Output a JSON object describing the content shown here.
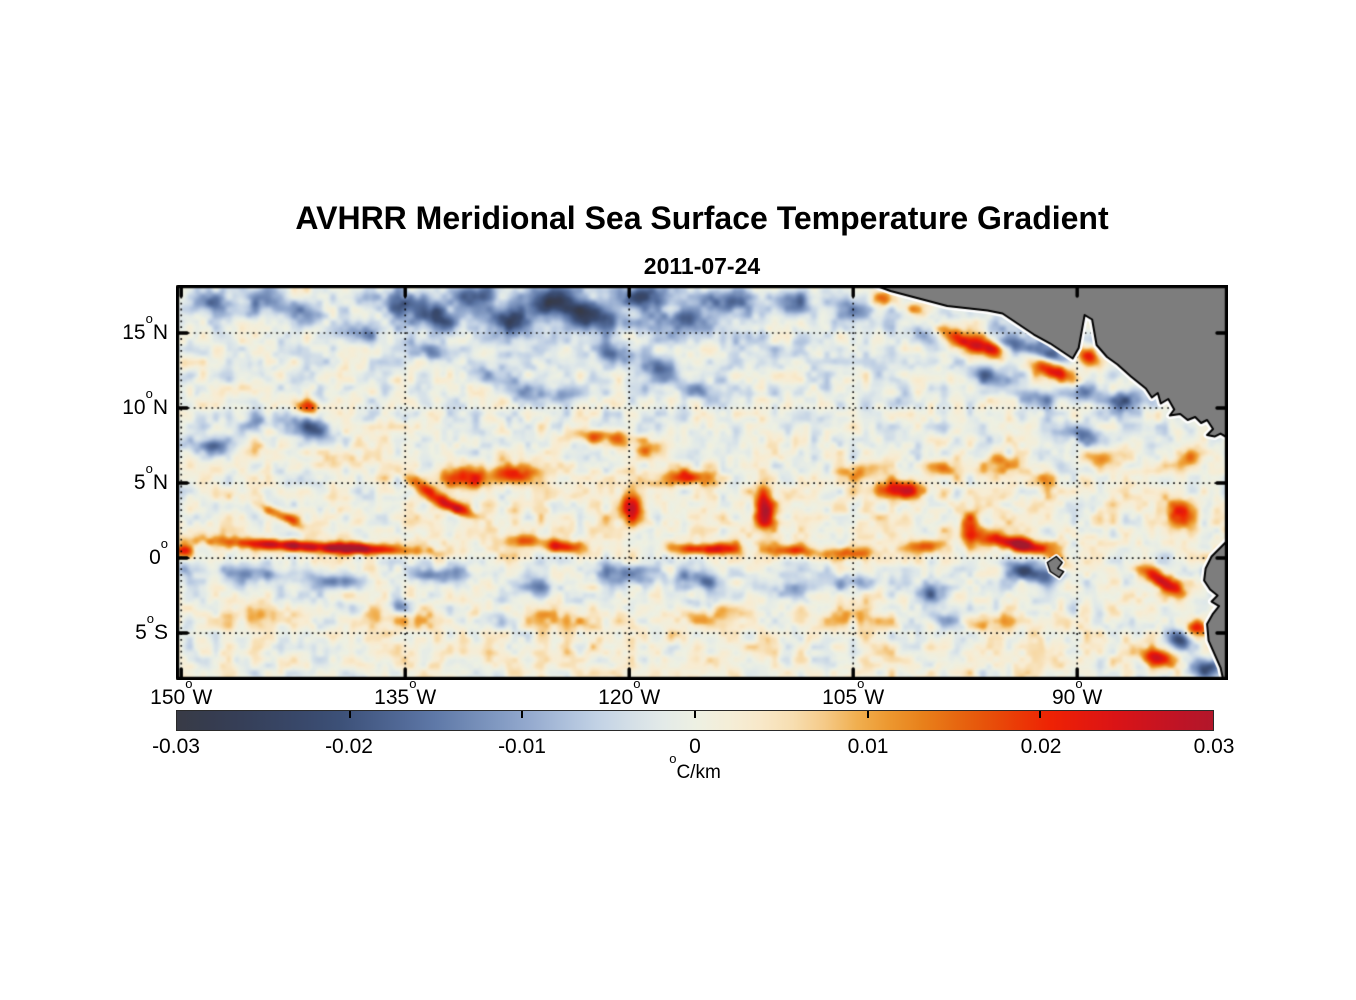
{
  "title": "AVHRR Meridional Sea Surface Temperature Gradient",
  "date": "2011-07-24",
  "chart_data": {
    "type": "heatmap",
    "title": "AVHRR Meridional Sea Surface Temperature Gradient",
    "subtitle": "2011-07-24",
    "variable": "meridional sea surface temperature gradient",
    "units": "°C/km",
    "lon_range": [
      -150.35,
      -79.9
    ],
    "lat_range": [
      -8.13,
      18.2
    ],
    "grid": "dotted",
    "x_ticks": [
      {
        "lon": -150,
        "num": "150",
        "dir": "W",
        "label": "150°W"
      },
      {
        "lon": -135,
        "num": "135",
        "dir": "W",
        "label": "135°W"
      },
      {
        "lon": -120,
        "num": "120",
        "dir": "W",
        "label": "120°W"
      },
      {
        "lon": -105,
        "num": "105",
        "dir": "W",
        "label": "105°W"
      },
      {
        "lon": -90,
        "num": "90",
        "dir": "W",
        "label": "90°W"
      }
    ],
    "y_ticks": [
      {
        "lat": 15,
        "num": "15",
        "dir": "N",
        "label": "15°N"
      },
      {
        "lat": 10,
        "num": "10",
        "dir": "N",
        "label": "10°N"
      },
      {
        "lat": 5,
        "num": "5",
        "dir": "N",
        "label": "5°N"
      },
      {
        "lat": 0,
        "num": "0",
        "dir": "",
        "label": "0°"
      },
      {
        "lat": -5,
        "num": "5",
        "dir": "S",
        "label": "5°S"
      }
    ],
    "colorbar": {
      "min": -0.03,
      "max": 0.03,
      "ticks": [
        -0.03,
        -0.02,
        -0.01,
        0,
        0.01,
        0.02,
        0.03
      ],
      "tick_labels": [
        "-0.03",
        "-0.02",
        "-0.01",
        "0",
        "0.01",
        "0.02",
        "0.03"
      ],
      "unit_sup": "o",
      "unit_text": "C/km",
      "stops": [
        {
          "v": -0.0325,
          "c": "#3a393b"
        },
        {
          "v": -0.027,
          "c": "#353d54"
        },
        {
          "v": -0.021,
          "c": "#3a4d74"
        },
        {
          "v": -0.0155,
          "c": "#5a74a4"
        },
        {
          "v": -0.01,
          "c": "#8fa6cc"
        },
        {
          "v": -0.006,
          "c": "#bfcfe4"
        },
        {
          "v": -0.0025,
          "c": "#dfe8e9"
        },
        {
          "v": 0.0,
          "c": "#edf0e3"
        },
        {
          "v": 0.003,
          "c": "#f8ecd2"
        },
        {
          "v": 0.0065,
          "c": "#f7d9a6"
        },
        {
          "v": 0.01,
          "c": "#efa63d"
        },
        {
          "v": 0.0135,
          "c": "#e77c17"
        },
        {
          "v": 0.017,
          "c": "#e7500a"
        },
        {
          "v": 0.0205,
          "c": "#ef2203"
        },
        {
          "v": 0.024,
          "c": "#dd1414"
        },
        {
          "v": 0.028,
          "c": "#bf1426"
        },
        {
          "v": 0.0325,
          "c": "#a11a2e"
        }
      ]
    },
    "land_color": "#7d7d7d",
    "coast_outline": "#000000",
    "coast_halo": "#ffffff",
    "grid_color": "#000000",
    "land_polygons": {
      "central_america": [
        [
          -103.6,
          18.2
        ],
        [
          -102.5,
          17.8
        ],
        [
          -100.6,
          17.3
        ],
        [
          -98.7,
          16.8
        ],
        [
          -96.0,
          16.5
        ],
        [
          -95.0,
          16.3
        ],
        [
          -94.1,
          15.7
        ],
        [
          -92.9,
          14.9
        ],
        [
          -91.8,
          14.3
        ],
        [
          -90.9,
          13.7
        ],
        [
          -90.3,
          13.3
        ],
        [
          -89.9,
          14.0
        ],
        [
          -89.5,
          16.2
        ],
        [
          -89.0,
          15.9
        ],
        [
          -88.7,
          14.2
        ],
        [
          -88.0,
          13.4
        ],
        [
          -87.3,
          12.9
        ],
        [
          -86.4,
          12.1
        ],
        [
          -85.4,
          11.3
        ],
        [
          -85.0,
          10.7
        ],
        [
          -84.6,
          11.0
        ],
        [
          -84.4,
          10.3
        ],
        [
          -83.9,
          10.6
        ],
        [
          -83.5,
          9.9
        ],
        [
          -83.8,
          9.5
        ],
        [
          -83.1,
          9.6
        ],
        [
          -82.6,
          9.2
        ],
        [
          -82.1,
          9.4
        ],
        [
          -81.7,
          9.0
        ],
        [
          -81.3,
          9.2
        ],
        [
          -80.9,
          8.6
        ],
        [
          -81.3,
          8.2
        ],
        [
          -80.8,
          8.1
        ],
        [
          -80.4,
          8.3
        ],
        [
          -79.9,
          8.0
        ],
        [
          -79.9,
          18.2
        ]
      ],
      "south_america": [
        [
          -79.9,
          1.2
        ],
        [
          -80.4,
          0.7
        ],
        [
          -81.0,
          0.1
        ],
        [
          -81.4,
          -0.7
        ],
        [
          -81.5,
          -1.5
        ],
        [
          -81.1,
          -2.1
        ],
        [
          -80.6,
          -2.5
        ],
        [
          -81.0,
          -2.9
        ],
        [
          -80.5,
          -3.2
        ],
        [
          -80.9,
          -3.7
        ],
        [
          -81.3,
          -4.4
        ],
        [
          -81.2,
          -5.5
        ],
        [
          -80.8,
          -6.4
        ],
        [
          -80.4,
          -7.3
        ],
        [
          -80.2,
          -8.2
        ],
        [
          -79.9,
          -8.2
        ]
      ],
      "galapagos": [
        [
          -92.0,
          -0.3
        ],
        [
          -91.4,
          0.1
        ],
        [
          -91.0,
          -0.3
        ],
        [
          -91.3,
          -0.7
        ],
        [
          -90.9,
          -0.9
        ],
        [
          -91.2,
          -1.3
        ],
        [
          -91.8,
          -0.9
        ]
      ]
    },
    "features_format": "[lon_deg, lat_deg, amplitude_degC_per_km, sigma_lon_deg, sigma_lat_deg, rotation_deg_cw]",
    "features": [
      [
        -115,
        14.5,
        -0.0022,
        26,
        3.2,
        0
      ],
      [
        -115,
        3.0,
        0.0028,
        26,
        2.2,
        0
      ],
      [
        -115,
        -1.3,
        -0.0018,
        26,
        1.1,
        0
      ],
      [
        -115,
        -5.8,
        0.0022,
        26,
        2.4,
        0
      ],
      [
        -148.0,
        16.9,
        -0.013,
        1.1,
        0.55,
        0
      ],
      [
        -144.4,
        17.2,
        -0.015,
        1.0,
        0.6,
        0
      ],
      [
        -141.7,
        16.4,
        -0.013,
        0.9,
        0.5,
        20
      ],
      [
        -138.3,
        15.0,
        -0.015,
        1.1,
        0.5,
        10
      ],
      [
        -135.5,
        17.1,
        -0.017,
        1.0,
        0.6,
        0
      ],
      [
        -133.2,
        16.1,
        -0.021,
        1.2,
        0.6,
        15
      ],
      [
        -130.6,
        17.5,
        -0.019,
        1.0,
        0.6,
        0
      ],
      [
        -128.2,
        15.8,
        -0.021,
        1.1,
        0.6,
        10
      ],
      [
        -125.4,
        17.1,
        -0.023,
        1.3,
        0.7,
        0
      ],
      [
        -122.5,
        16.1,
        -0.023,
        1.5,
        0.7,
        10
      ],
      [
        -119.3,
        17.5,
        -0.019,
        1.2,
        0.6,
        0
      ],
      [
        -116.5,
        15.8,
        -0.017,
        1.1,
        0.55,
        0
      ],
      [
        -113.3,
        17.1,
        -0.019,
        1.1,
        0.6,
        0
      ],
      [
        -109.2,
        17.1,
        -0.015,
        1.0,
        0.55,
        0
      ],
      [
        -105.2,
        16.5,
        -0.013,
        0.9,
        0.5,
        0
      ],
      [
        -133.2,
        13.7,
        -0.013,
        0.8,
        0.45,
        25
      ],
      [
        -130.2,
        12.5,
        -0.011,
        0.8,
        0.45,
        25
      ],
      [
        -127.3,
        11.1,
        -0.012,
        0.9,
        0.45,
        20
      ],
      [
        -124.5,
        10.8,
        -0.011,
        0.9,
        0.45,
        0
      ],
      [
        -121.1,
        13.7,
        -0.015,
        1.0,
        0.5,
        15
      ],
      [
        -117.9,
        12.4,
        -0.013,
        0.9,
        0.5,
        20
      ],
      [
        -115.0,
        11.1,
        -0.009,
        0.8,
        0.45,
        0
      ],
      [
        -148.0,
        7.4,
        -0.017,
        0.9,
        0.5,
        0
      ],
      [
        -141.3,
        8.7,
        -0.019,
        1.0,
        0.5,
        15
      ],
      [
        -144.8,
        9.1,
        -0.01,
        0.7,
        0.4,
        0
      ],
      [
        -99.9,
        15.1,
        -0.012,
        0.8,
        0.5,
        0
      ],
      [
        -94.4,
        14.1,
        -0.018,
        1.0,
        0.55,
        20
      ],
      [
        -91.8,
        13.6,
        -0.02,
        0.9,
        0.5,
        20
      ],
      [
        -89.8,
        11.1,
        -0.016,
        0.8,
        0.5,
        0
      ],
      [
        -95.7,
        12.1,
        -0.017,
        0.9,
        0.45,
        20
      ],
      [
        -92.6,
        10.7,
        -0.013,
        0.8,
        0.45,
        0
      ],
      [
        -89.4,
        8.1,
        -0.015,
        0.9,
        0.5,
        20
      ],
      [
        -86.9,
        10.5,
        -0.016,
        0.7,
        0.5,
        0
      ],
      [
        -149.8,
        -0.8,
        -0.011,
        0.5,
        0.35,
        0
      ],
      [
        -145.2,
        -1.0,
        -0.013,
        1.3,
        0.4,
        5
      ],
      [
        -139.7,
        -1.5,
        -0.012,
        1.4,
        0.4,
        0
      ],
      [
        -132.6,
        -1.1,
        -0.013,
        1.3,
        0.4,
        0
      ],
      [
        -126.0,
        -1.9,
        -0.009,
        1.2,
        0.4,
        0
      ],
      [
        -120.1,
        -1.0,
        -0.016,
        1.3,
        0.45,
        5
      ],
      [
        -115.2,
        -1.5,
        -0.014,
        1.2,
        0.45,
        10
      ],
      [
        -109.2,
        -2.0,
        -0.008,
        1.2,
        0.4,
        0
      ],
      [
        -104.9,
        -1.6,
        -0.01,
        1.0,
        0.4,
        0
      ],
      [
        -99.9,
        -2.4,
        -0.013,
        0.9,
        0.45,
        15
      ],
      [
        -93.1,
        -1.0,
        -0.021,
        1.1,
        0.45,
        15
      ],
      [
        -139.2,
        -3.2,
        -0.009,
        0.7,
        0.35,
        15
      ],
      [
        -135.2,
        -3.3,
        -0.011,
        0.8,
        0.35,
        10
      ],
      [
        -128.6,
        -4.2,
        -0.009,
        0.9,
        0.4,
        10
      ],
      [
        -98.9,
        -4.1,
        -0.012,
        0.8,
        0.4,
        10
      ],
      [
        -115.3,
        -3.0,
        -0.007,
        0.6,
        0.35,
        0
      ],
      [
        -83.1,
        -5.5,
        -0.019,
        0.8,
        0.45,
        25
      ],
      [
        -81.4,
        -7.4,
        -0.022,
        0.9,
        0.5,
        15
      ],
      [
        -149.8,
        0.5,
        0.02,
        0.45,
        0.3,
        0
      ],
      [
        -141.2,
        0.75,
        0.027,
        5.0,
        0.26,
        3
      ],
      [
        -138.0,
        0.67,
        0.012,
        1.2,
        0.25,
        0
      ],
      [
        -143.3,
        2.8,
        0.016,
        1.4,
        0.28,
        25
      ],
      [
        -133.4,
        4.5,
        0.015,
        1.3,
        0.3,
        30
      ],
      [
        -131.8,
        3.4,
        0.021,
        1.1,
        0.28,
        20
      ],
      [
        -124.3,
        0.73,
        0.024,
        0.9,
        0.3,
        5
      ],
      [
        -126.9,
        1.2,
        0.012,
        1.0,
        0.3,
        0
      ],
      [
        -131.2,
        5.3,
        0.02,
        1.3,
        0.5,
        0
      ],
      [
        -127.8,
        5.65,
        0.018,
        1.1,
        0.45,
        0
      ],
      [
        -121.9,
        8.1,
        0.016,
        1.6,
        0.35,
        5
      ],
      [
        -118.7,
        7.2,
        0.01,
        1.0,
        0.35,
        10
      ],
      [
        -119.8,
        3.3,
        0.024,
        0.5,
        0.9,
        0
      ],
      [
        -116.0,
        5.4,
        0.018,
        1.1,
        0.35,
        0
      ],
      [
        -110.9,
        3.3,
        0.026,
        0.45,
        1.1,
        0
      ],
      [
        -114.8,
        0.6,
        0.024,
        1.6,
        0.3,
        0
      ],
      [
        -101.9,
        4.6,
        0.02,
        1.2,
        0.4,
        0
      ],
      [
        -101.4,
        4.3,
        0.012,
        0.5,
        0.35,
        0
      ],
      [
        -97.1,
        2.1,
        0.016,
        0.5,
        0.8,
        0
      ],
      [
        -109.0,
        0.47,
        0.02,
        1.1,
        0.3,
        0
      ],
      [
        -105.2,
        0.27,
        0.016,
        1.2,
        0.3,
        0
      ],
      [
        -100.4,
        0.73,
        0.014,
        0.9,
        0.3,
        0
      ],
      [
        -94.0,
        0.93,
        0.033,
        1.5,
        0.33,
        10
      ],
      [
        -91.3,
        -0.2,
        0.018,
        0.6,
        0.3,
        20
      ],
      [
        -104.5,
        5.7,
        0.012,
        0.8,
        0.4,
        0
      ],
      [
        -95.0,
        6.2,
        0.015,
        0.9,
        0.45,
        0
      ],
      [
        -99.0,
        5.9,
        0.009,
        0.7,
        0.4,
        0
      ],
      [
        -92.5,
        5.3,
        0.011,
        0.8,
        0.4,
        0
      ],
      [
        -88.2,
        6.7,
        0.013,
        0.9,
        0.45,
        0
      ],
      [
        -82.5,
        6.6,
        0.015,
        0.6,
        0.5,
        0
      ],
      [
        -83.1,
        3.0,
        0.016,
        0.8,
        0.7,
        0
      ],
      [
        -96.4,
        14.1,
        0.031,
        1.4,
        0.45,
        15
      ],
      [
        -99.2,
        15.2,
        0.014,
        0.9,
        0.4,
        10
      ],
      [
        -91.6,
        12.5,
        0.031,
        1.2,
        0.45,
        25
      ],
      [
        -89.2,
        13.4,
        0.02,
        0.5,
        0.4,
        20
      ],
      [
        -102.9,
        17.3,
        0.013,
        0.7,
        0.35,
        0
      ],
      [
        -100.9,
        16.6,
        0.014,
        0.7,
        0.35,
        10
      ],
      [
        -84.3,
        -1.53,
        0.029,
        1.1,
        0.38,
        30
      ],
      [
        -82.0,
        -4.6,
        0.021,
        0.5,
        0.4,
        0
      ],
      [
        -84.5,
        -6.7,
        0.026,
        0.9,
        0.4,
        10
      ],
      [
        -80.4,
        -0.27,
        0.015,
        0.4,
        0.4,
        0
      ],
      [
        -141.5,
        10.1,
        0.022,
        0.5,
        0.35,
        0
      ],
      [
        -145.4,
        -3.9,
        0.0075,
        1.8,
        0.5,
        0
      ],
      [
        -135.3,
        -3.9,
        0.0075,
        1.8,
        0.5,
        0
      ],
      [
        -125.3,
        -4.1,
        0.007,
        1.8,
        0.5,
        0
      ],
      [
        -115.2,
        -3.9,
        0.007,
        1.8,
        0.5,
        0
      ],
      [
        -105.1,
        -4.0,
        0.0075,
        1.8,
        0.5,
        0
      ],
      [
        -95.1,
        -4.2,
        0.007,
        1.5,
        0.5,
        0
      ],
      [
        -145.3,
        7.1,
        0.007,
        1.2,
        0.5,
        0
      ],
      [
        -138.5,
        6.7,
        0.007,
        1.2,
        0.5,
        0
      ]
    ],
    "noise": {
      "seed": 7,
      "octave1": {
        "px": 13,
        "amp": 0.005
      },
      "octave2": {
        "px": 6.5,
        "amp": 0.0028
      }
    }
  }
}
